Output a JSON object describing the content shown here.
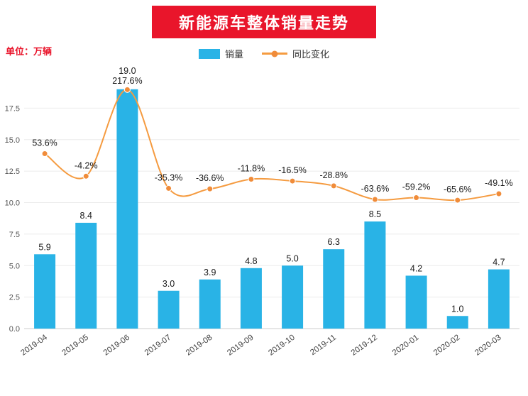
{
  "header": {
    "title": "新能源车整体销量走势",
    "unit_label": "单位：万辆"
  },
  "legend": {
    "bar_label": "销量",
    "line_label": "同比变化"
  },
  "colors": {
    "title_bg": "#e9152b",
    "title_text": "#ffffff",
    "unit_text": "#e9152b",
    "bar": "#29b3e6",
    "line": "#f59b40",
    "marker": "#f08c3a",
    "label_text": "#1a1a1a",
    "axis_text": "#555555",
    "grid": "#ebebeb"
  },
  "chart_data": {
    "type": "bar",
    "subtype": "bar+line combo, dual axis",
    "title": "新能源车整体销量走势",
    "ylabel": "万辆",
    "categories": [
      "2019-04",
      "2019-05",
      "2019-06",
      "2019-07",
      "2019-08",
      "2019-09",
      "2019-10",
      "2019-11",
      "2019-12",
      "2020-01",
      "2020-02",
      "2020-03"
    ],
    "series": [
      {
        "name": "销量",
        "type": "bar",
        "axis": "left",
        "unit": "万辆",
        "values": [
          5.9,
          8.4,
          19.0,
          3.0,
          3.9,
          4.8,
          5.0,
          6.3,
          8.5,
          4.2,
          1.0,
          4.7
        ]
      },
      {
        "name": "同比变化",
        "type": "line",
        "axis": "right",
        "unit": "%",
        "values": [
          53.6,
          -4.2,
          217.6,
          -35.3,
          -36.6,
          -11.8,
          -16.5,
          -28.8,
          -63.6,
          -59.2,
          -65.6,
          -49.1
        ]
      }
    ],
    "left_axis": {
      "min": 0,
      "max": 20,
      "ticks": [
        0,
        2.5,
        5,
        7.5,
        10,
        12.5,
        15,
        17.5
      ]
    },
    "right_axis": {
      "min": -100,
      "max": 287,
      "labels_visible": false
    },
    "grid": true,
    "legend_position": "top-center"
  }
}
